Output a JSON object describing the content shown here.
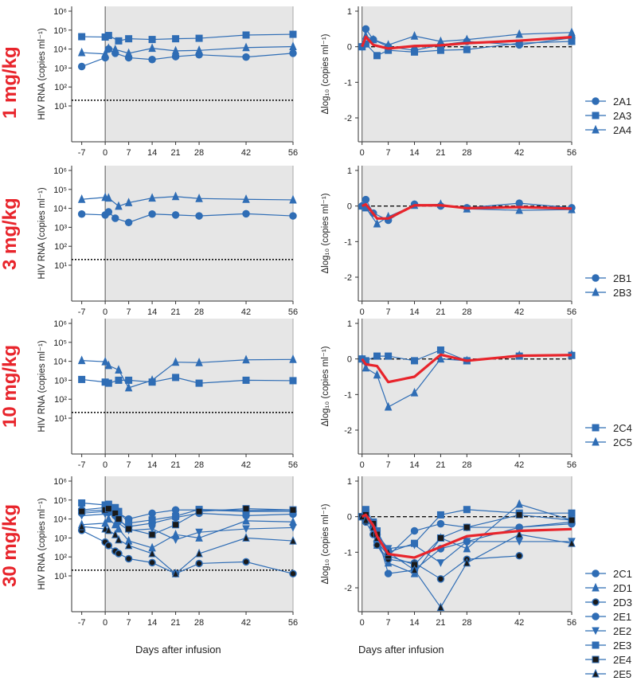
{
  "colors": {
    "series": "#2f6db5",
    "mean": "#e8242b",
    "shade": "#e6e6e6",
    "axis": "#333333"
  },
  "x_axis_title": "Days after infusion",
  "chart_data": [
    {
      "type": "line",
      "panel": "1mg-left",
      "dose_label": "1 mg/kg",
      "ylabel": "HIV RNA (copies ml⁻¹)",
      "yscale": "log",
      "ylim": [
        1,
        6
      ],
      "x_ticks": [
        -7,
        0,
        7,
        14,
        21,
        28,
        42,
        56
      ],
      "y_ticks": [
        "10¹",
        "10²",
        "10³",
        "10⁴",
        "10⁵",
        "10⁶"
      ],
      "detection_limit": 20,
      "series": [
        {
          "name": "2A1",
          "marker": "circle",
          "x": [
            -7,
            0,
            1,
            3,
            7,
            14,
            21,
            28,
            42,
            56
          ],
          "y": [
            1200,
            3500,
            10000,
            6000,
            3500,
            2800,
            4000,
            5000,
            3800,
            6000
          ]
        },
        {
          "name": "2A3",
          "marker": "square",
          "x": [
            -7,
            0,
            1,
            4,
            7,
            14,
            21,
            28,
            42,
            56
          ],
          "y": [
            45000,
            43000,
            52000,
            27000,
            35000,
            32000,
            35000,
            37000,
            55000,
            60000
          ]
        },
        {
          "name": "2A4",
          "marker": "triangle",
          "x": [
            -7,
            0,
            1,
            3,
            7,
            14,
            21,
            28,
            42,
            56
          ],
          "y": [
            6500,
            5500,
            11000,
            9500,
            6000,
            11000,
            8000,
            8500,
            12000,
            13500
          ]
        }
      ]
    },
    {
      "type": "line",
      "panel": "1mg-right",
      "ylabel": "Δlog₁₀ (copies ml⁻¹)",
      "ylim": [
        -2.5,
        1
      ],
      "x_ticks": [
        0,
        7,
        14,
        21,
        28,
        42,
        56
      ],
      "y_ticks": [
        "1",
        "0",
        "-1",
        "-2"
      ],
      "series": [
        {
          "name": "2A1",
          "marker": "circle",
          "x": [
            0,
            1,
            3,
            7,
            14,
            21,
            28,
            42,
            56
          ],
          "y": [
            0,
            0.5,
            0.2,
            0.0,
            -0.1,
            0.05,
            0.15,
            0.05,
            0.25
          ]
        },
        {
          "name": "2A3",
          "marker": "square",
          "x": [
            0,
            1,
            4,
            7,
            14,
            21,
            28,
            42,
            56
          ],
          "y": [
            0,
            0.08,
            -0.25,
            -0.1,
            -0.15,
            -0.1,
            -0.08,
            0.1,
            0.15
          ]
        },
        {
          "name": "2A4",
          "marker": "triangle",
          "x": [
            0,
            1,
            3,
            7,
            14,
            21,
            28,
            42,
            56
          ],
          "y": [
            0,
            0.3,
            0.2,
            0.05,
            0.3,
            0.15,
            0.2,
            0.35,
            0.4
          ]
        },
        {
          "name": "mean",
          "marker": "none",
          "x": [
            0,
            1,
            3,
            7,
            14,
            21,
            28,
            42,
            56
          ],
          "y": [
            0,
            0.28,
            0.05,
            -0.05,
            0.02,
            0.04,
            0.1,
            0.17,
            0.27
          ]
        }
      ]
    },
    {
      "type": "line",
      "panel": "3mg-left",
      "dose_label": "3 mg/kg",
      "ylabel": "HIV RNA (copies ml⁻¹)",
      "yscale": "log",
      "ylim": [
        1,
        6
      ],
      "x_ticks": [
        -7,
        0,
        7,
        14,
        21,
        28,
        42,
        56
      ],
      "y_ticks": [
        "10¹",
        "10²",
        "10³",
        "10⁴",
        "10⁵",
        "10⁶"
      ],
      "detection_limit": 20,
      "series": [
        {
          "name": "2B1",
          "marker": "circle",
          "x": [
            -7,
            0,
            1,
            3,
            7,
            14,
            21,
            28,
            42,
            56
          ],
          "y": [
            5000,
            4500,
            6500,
            3000,
            1800,
            5000,
            4500,
            4000,
            5200,
            4000
          ]
        },
        {
          "name": "2B3",
          "marker": "triangle",
          "x": [
            -7,
            0,
            1,
            4,
            7,
            14,
            21,
            28,
            42,
            56
          ],
          "y": [
            30000,
            38000,
            35000,
            13000,
            20000,
            35000,
            42000,
            33000,
            30000,
            28000
          ]
        }
      ]
    },
    {
      "type": "line",
      "panel": "3mg-right",
      "ylabel": "Δlog₁₀ (copies ml⁻¹)",
      "ylim": [
        -2.5,
        1
      ],
      "x_ticks": [
        0,
        7,
        14,
        21,
        28,
        42,
        56
      ],
      "y_ticks": [
        "1",
        "0",
        "-1",
        "-2"
      ],
      "series": [
        {
          "name": "2B1",
          "marker": "circle",
          "x": [
            0,
            1,
            3,
            7,
            14,
            21,
            28,
            42,
            56
          ],
          "y": [
            0,
            0.18,
            -0.2,
            -0.4,
            0.05,
            0.0,
            -0.05,
            0.08,
            -0.05
          ]
        },
        {
          "name": "2B3",
          "marker": "triangle",
          "x": [
            0,
            1,
            4,
            7,
            14,
            21,
            28,
            42,
            56
          ],
          "y": [
            0,
            -0.05,
            -0.5,
            -0.3,
            0.02,
            0.05,
            -0.08,
            -0.12,
            -0.1
          ]
        },
        {
          "name": "mean",
          "marker": "none",
          "x": [
            0,
            1,
            4,
            7,
            14,
            21,
            28,
            42,
            56
          ],
          "y": [
            0,
            0.05,
            -0.35,
            -0.35,
            0.02,
            0.02,
            -0.06,
            -0.03,
            -0.07
          ]
        }
      ]
    },
    {
      "type": "line",
      "panel": "10mg-left",
      "dose_label": "10 mg/kg",
      "ylabel": "HIV RNA (copies ml⁻¹)",
      "yscale": "log",
      "ylim": [
        1,
        6
      ],
      "x_ticks": [
        -7,
        0,
        7,
        14,
        21,
        28,
        42,
        56
      ],
      "y_ticks": [
        "10¹",
        "10²",
        "10³",
        "10⁴",
        "10⁵",
        "10⁶"
      ],
      "detection_limit": 20,
      "series": [
        {
          "name": "2C4",
          "marker": "square",
          "x": [
            -7,
            0,
            1,
            4,
            7,
            14,
            21,
            28,
            42,
            56
          ],
          "y": [
            1100,
            800,
            700,
            1000,
            1000,
            800,
            1400,
            700,
            1000,
            950
          ]
        },
        {
          "name": "2C5",
          "marker": "triangle",
          "x": [
            -7,
            0,
            1,
            4,
            7,
            14,
            21,
            28,
            42,
            56
          ],
          "y": [
            11000,
            9500,
            6000,
            3500,
            400,
            1000,
            9000,
            8500,
            12000,
            12500
          ]
        }
      ]
    },
    {
      "type": "line",
      "panel": "10mg-right",
      "ylabel": "Δlog₁₀ (copies ml⁻¹)",
      "ylim": [
        -2.5,
        1
      ],
      "x_ticks": [
        0,
        7,
        14,
        21,
        28,
        42,
        56
      ],
      "y_ticks": [
        "1",
        "0",
        "-1",
        "-2"
      ],
      "series": [
        {
          "name": "2C4",
          "marker": "square",
          "x": [
            0,
            1,
            4,
            7,
            14,
            21,
            28,
            42,
            56
          ],
          "y": [
            0,
            -0.05,
            0.08,
            0.08,
            -0.05,
            0.25,
            -0.05,
            0.08,
            0.1
          ]
        },
        {
          "name": "2C5",
          "marker": "triangle",
          "x": [
            0,
            1,
            4,
            7,
            14,
            21,
            28,
            42,
            56
          ],
          "y": [
            0,
            -0.25,
            -0.45,
            -1.35,
            -0.95,
            0.0,
            -0.05,
            0.1,
            0.12
          ]
        },
        {
          "name": "mean",
          "marker": "none",
          "x": [
            0,
            1,
            4,
            7,
            14,
            21,
            28,
            42,
            56
          ],
          "y": [
            0,
            -0.15,
            -0.2,
            -0.65,
            -0.5,
            0.12,
            -0.05,
            0.09,
            0.11
          ]
        }
      ]
    },
    {
      "type": "line",
      "panel": "30mg-left",
      "dose_label": "30 mg/kg",
      "ylabel": "HIV RNA (copies ml⁻¹)",
      "yscale": "log",
      "ylim": [
        1,
        6
      ],
      "x_ticks": [
        -7,
        0,
        7,
        14,
        21,
        28,
        42,
        56
      ],
      "y_ticks": [
        "10¹",
        "10²",
        "10³",
        "10⁴",
        "10⁵",
        "10⁶"
      ],
      "detection_limit": 20,
      "series": [
        {
          "name": "2C1",
          "marker": "circle",
          "x": [
            -7,
            0,
            1,
            3,
            4,
            7,
            14,
            21,
            28,
            42,
            56
          ],
          "y": [
            30000,
            40000,
            45000,
            35000,
            20000,
            10000,
            20000,
            30000,
            30000,
            25000,
            25000
          ]
        },
        {
          "name": "2D1",
          "marker": "triangle",
          "x": [
            -7,
            0,
            1,
            3,
            4,
            7,
            14,
            21,
            28,
            42,
            56
          ],
          "y": [
            5000,
            6000,
            10000,
            5000,
            3000,
            700,
            300,
            1500,
            1000,
            8000,
            7000
          ]
        },
        {
          "name": "2D3",
          "marker": "circle-dark",
          "x": [
            -7,
            0,
            1,
            3,
            4,
            7,
            14,
            21,
            28,
            42,
            56
          ],
          "y": [
            2500,
            600,
            400,
            200,
            150,
            80,
            50,
            13,
            45,
            55,
            13
          ]
        },
        {
          "name": "2E1",
          "marker": "circle",
          "x": [
            -7,
            0,
            1,
            3,
            4,
            7,
            14,
            21,
            28,
            42,
            56
          ],
          "y": [
            20000,
            25000,
            22000,
            15000,
            8000,
            4000,
            6000,
            12000,
            20000,
            15000,
            18000
          ]
        },
        {
          "name": "2E2",
          "marker": "triangle-down",
          "x": [
            -7,
            0,
            1,
            3,
            4,
            7,
            14,
            21,
            28,
            42,
            56
          ],
          "y": [
            15000,
            18000,
            20000,
            12000,
            6000,
            2500,
            3000,
            800,
            2000,
            3000,
            3500
          ]
        },
        {
          "name": "2E3",
          "marker": "square",
          "x": [
            -7,
            0,
            1,
            3,
            4,
            7,
            14,
            21,
            28,
            42,
            56
          ],
          "y": [
            70000,
            55000,
            60000,
            40000,
            25000,
            6000,
            9000,
            14000,
            32000,
            28000,
            30000
          ]
        },
        {
          "name": "2E4",
          "marker": "square-dark",
          "x": [
            -7,
            0,
            1,
            3,
            4,
            7,
            14,
            21,
            28,
            42,
            56
          ],
          "y": [
            25000,
            30000,
            35000,
            20000,
            10000,
            3000,
            1500,
            5000,
            25000,
            35000,
            30000
          ]
        },
        {
          "name": "2E5",
          "marker": "triangle-dark",
          "x": [
            -7,
            0,
            1,
            3,
            4,
            7,
            14,
            21,
            28,
            42,
            56
          ],
          "y": [
            4000,
            3000,
            2500,
            1500,
            800,
            400,
            150,
            13,
            150,
            1000,
            700
          ]
        }
      ]
    },
    {
      "type": "line",
      "panel": "30mg-right",
      "ylabel": "Δlog₁₀ (copies ml⁻¹)",
      "ylim": [
        -2.5,
        1
      ],
      "x_ticks": [
        0,
        7,
        14,
        21,
        28,
        42,
        56
      ],
      "y_ticks": [
        "1",
        "0",
        "-1",
        "-2"
      ],
      "series": [
        {
          "name": "2C1",
          "marker": "circle",
          "x": [
            0,
            1,
            3,
            4,
            7,
            14,
            21,
            28,
            42,
            56
          ],
          "y": [
            0,
            0.1,
            -0.3,
            -0.7,
            -1.1,
            -0.4,
            -0.2,
            -0.3,
            -0.3,
            -0.2
          ]
        },
        {
          "name": "2D1",
          "marker": "triangle",
          "x": [
            0,
            1,
            3,
            4,
            7,
            14,
            21,
            28,
            42,
            56
          ],
          "y": [
            0,
            0.1,
            -0.4,
            -0.8,
            -1.3,
            -1.6,
            -0.6,
            -0.9,
            0.35,
            -0.1
          ]
        },
        {
          "name": "2D3",
          "marker": "circle-dark",
          "x": [
            0,
            1,
            3,
            4,
            7,
            14,
            21,
            28,
            42
          ],
          "y": [
            0,
            -0.15,
            -0.5,
            -0.8,
            -1.2,
            -1.3,
            -1.75,
            -1.2,
            -1.1
          ]
        },
        {
          "name": "2E1",
          "marker": "circle",
          "x": [
            0,
            1,
            3,
            4,
            7,
            14,
            21,
            28,
            42,
            56
          ],
          "y": [
            0,
            0.05,
            -0.3,
            -0.5,
            -1.6,
            -1.5,
            -0.9,
            -0.7,
            -0.3,
            -0.15
          ]
        },
        {
          "name": "2E2",
          "marker": "triangle-down",
          "x": [
            0,
            1,
            3,
            4,
            7,
            14,
            21,
            28,
            42,
            56
          ],
          "y": [
            0,
            0.1,
            -0.2,
            -0.5,
            -0.9,
            -0.8,
            -1.3,
            -0.7,
            -0.7,
            -0.7
          ]
        },
        {
          "name": "2E3",
          "marker": "square",
          "x": [
            0,
            1,
            3,
            4,
            7,
            14,
            21,
            28,
            42,
            56
          ],
          "y": [
            0,
            0.2,
            -0.15,
            -0.4,
            -1.0,
            -0.75,
            0.05,
            0.2,
            0.1,
            0.1
          ]
        },
        {
          "name": "2E4",
          "marker": "square-dark",
          "x": [
            0,
            1,
            3,
            4,
            7,
            14,
            21,
            28,
            42,
            56
          ],
          "y": [
            0,
            0.05,
            -0.2,
            -0.5,
            -1.1,
            -1.35,
            -0.6,
            -0.3,
            0.05,
            -0.1
          ]
        },
        {
          "name": "2E5",
          "marker": "triangle-dark",
          "x": [
            0,
            1,
            3,
            4,
            7,
            14,
            21,
            28,
            42,
            56
          ],
          "y": [
            0,
            -0.1,
            -0.3,
            -0.6,
            -1.0,
            -1.5,
            -2.55,
            -1.3,
            -0.5,
            -0.75
          ]
        },
        {
          "name": "mean",
          "marker": "none",
          "x": [
            0,
            1,
            3,
            4,
            7,
            14,
            21,
            28,
            42,
            56
          ],
          "y": [
            0,
            0.05,
            -0.25,
            -0.55,
            -1.05,
            -1.15,
            -0.85,
            -0.55,
            -0.4,
            -0.35
          ]
        }
      ]
    }
  ]
}
